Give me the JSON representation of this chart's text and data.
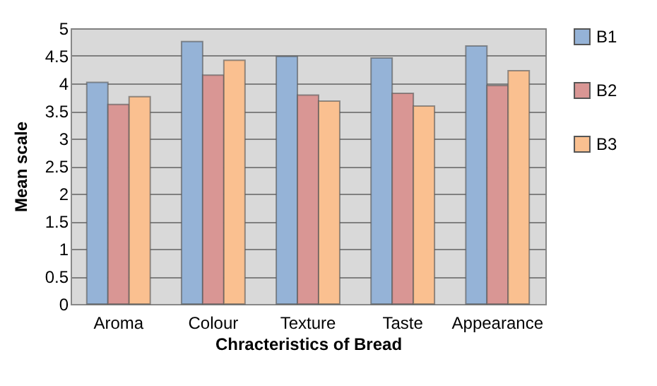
{
  "chart_data": {
    "type": "bar",
    "xlabel": "Chracteristics of Bread",
    "ylabel": "Mean scale",
    "categories": [
      "Aroma",
      "Colour",
      "Texture",
      "Taste",
      "Appearance"
    ],
    "series": [
      {
        "name": "B1",
        "color": "#95b3d7",
        "values": [
          4.02,
          4.76,
          4.49,
          4.46,
          4.68
        ]
      },
      {
        "name": "B2",
        "color": "#d99694",
        "values": [
          3.62,
          4.15,
          3.79,
          3.82,
          3.96
        ]
      },
      {
        "name": "B3",
        "color": "#fac090",
        "values": [
          3.76,
          4.42,
          3.68,
          3.59,
          4.23
        ]
      }
    ],
    "ylim": [
      0,
      5
    ],
    "yticks": [
      0,
      0.5,
      1,
      1.5,
      2,
      2.5,
      3,
      3.5,
      4,
      4.5,
      5
    ],
    "grid": "y",
    "legend": "right"
  }
}
